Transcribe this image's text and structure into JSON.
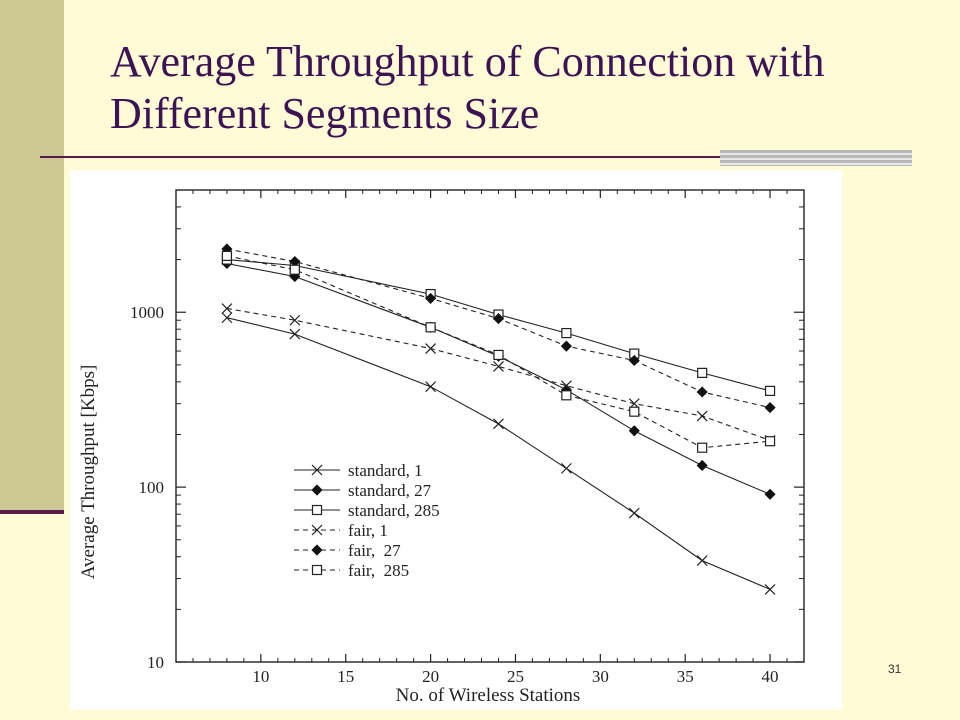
{
  "slide": {
    "title": "Average Throughput of Connection with Different Segments Size",
    "page_number": "31"
  },
  "chart_data": {
    "type": "line",
    "xlabel": "No. of Wireless Stations",
    "ylabel": "Average Throughput [Kbps]",
    "xlim": [
      5,
      42
    ],
    "ylim": [
      10,
      5000
    ],
    "yscale": "log",
    "xticks": [
      10,
      15,
      20,
      25,
      30,
      35,
      40
    ],
    "yticks": [
      10,
      100,
      1000
    ],
    "legend_position": "bottom-left",
    "grid": false,
    "x": [
      8,
      12,
      20,
      24,
      28,
      32,
      36,
      40
    ],
    "series": [
      {
        "name": "standard, 1",
        "line": "solid",
        "marker": "x",
        "values": [
          930,
          750,
          375,
          230,
          128,
          71,
          38,
          26
        ]
      },
      {
        "name": "standard, 27",
        "line": "solid",
        "marker": "diamond",
        "values": [
          1900,
          1600,
          820,
          560,
          360,
          210,
          133,
          91
        ]
      },
      {
        "name": "standard, 285",
        "line": "solid",
        "marker": "square",
        "values": [
          2000,
          1850,
          1270,
          970,
          760,
          580,
          450,
          355
        ]
      },
      {
        "name": "fair, 1",
        "line": "dashed",
        "marker": "x",
        "values": [
          1050,
          900,
          620,
          490,
          380,
          300,
          255,
          185
        ]
      },
      {
        "name": "fair,  27",
        "line": "dashed",
        "marker": "diamond",
        "values": [
          2300,
          1950,
          1200,
          920,
          640,
          530,
          350,
          285
        ]
      },
      {
        "name": "fair,  285",
        "line": "dashed",
        "marker": "square",
        "values": [
          2100,
          1750,
          820,
          570,
          335,
          270,
          168,
          183
        ]
      }
    ]
  }
}
